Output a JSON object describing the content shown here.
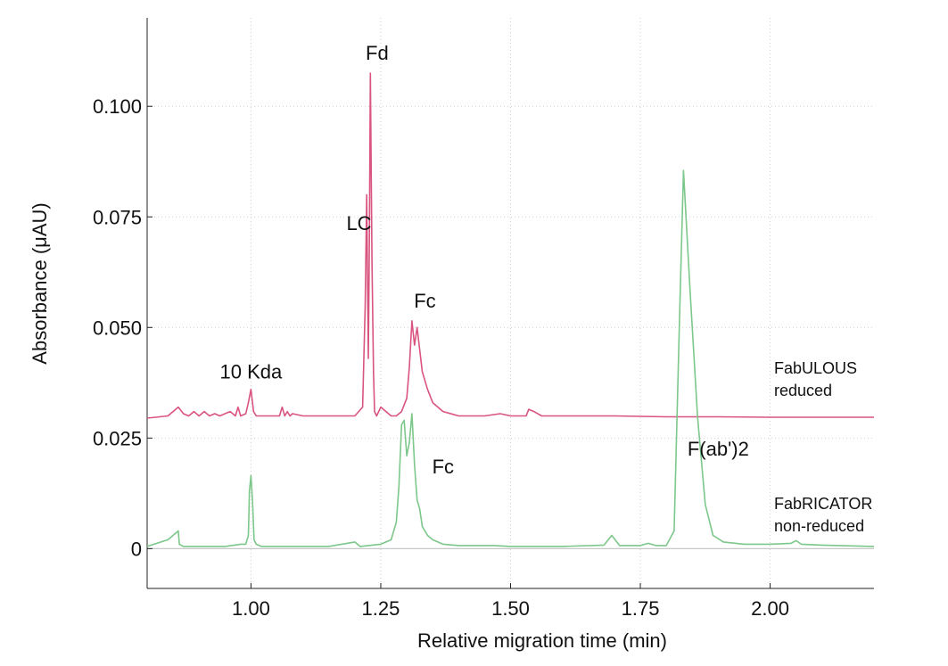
{
  "chart_data": {
    "type": "line",
    "title": "",
    "xlabel": "Relative migration time (min)",
    "ylabel": "Absorbance (μAU)",
    "xlim": [
      0.8,
      2.2
    ],
    "ylim": [
      -0.009,
      0.12
    ],
    "x_ticks": [
      1.0,
      1.25,
      1.5,
      1.75,
      2.0
    ],
    "x_tick_labels": [
      "1.00",
      "1.25",
      "1.50",
      "1.75",
      "2.00"
    ],
    "y_ticks": [
      0,
      0.025,
      0.05,
      0.075,
      0.1
    ],
    "y_tick_labels": [
      "0",
      "0.025",
      "0.050",
      "0.075",
      "0.100"
    ],
    "grid": "dotted",
    "colors": {
      "reduced": "#d9547f",
      "nonreduced": "#7cc78a",
      "baseline": "#c8c8c8"
    },
    "series": [
      {
        "name": "FabULOUS reduced",
        "label_lines": [
          "FabULOUS",
          "reduced"
        ],
        "x": [
          0.8,
          0.84,
          0.86,
          0.87,
          0.88,
          0.89,
          0.9,
          0.91,
          0.92,
          0.93,
          0.94,
          0.95,
          0.96,
          0.97,
          0.975,
          0.98,
          0.99,
          0.995,
          1.0,
          1.005,
          1.01,
          1.02,
          1.04,
          1.055,
          1.06,
          1.065,
          1.07,
          1.075,
          1.08,
          1.1,
          1.15,
          1.2,
          1.215,
          1.22,
          1.223,
          1.226,
          1.228,
          1.23,
          1.233,
          1.236,
          1.238,
          1.242,
          1.25,
          1.26,
          1.27,
          1.28,
          1.29,
          1.3,
          1.305,
          1.31,
          1.315,
          1.32,
          1.325,
          1.33,
          1.34,
          1.35,
          1.37,
          1.4,
          1.45,
          1.48,
          1.5,
          1.53,
          1.535,
          1.545,
          1.56,
          1.6,
          1.7,
          1.8,
          1.9,
          2.0,
          2.1,
          2.2
        ],
        "y": [
          0.0295,
          0.03,
          0.032,
          0.0305,
          0.03,
          0.031,
          0.03,
          0.031,
          0.03,
          0.0305,
          0.03,
          0.0305,
          0.031,
          0.03,
          0.032,
          0.03,
          0.0305,
          0.033,
          0.036,
          0.031,
          0.03,
          0.03,
          0.03,
          0.03,
          0.032,
          0.03,
          0.031,
          0.03,
          0.0305,
          0.03,
          0.03,
          0.03,
          0.032,
          0.055,
          0.08,
          0.043,
          0.07,
          0.1075,
          0.065,
          0.04,
          0.031,
          0.03,
          0.032,
          0.031,
          0.03,
          0.03,
          0.031,
          0.034,
          0.041,
          0.0515,
          0.046,
          0.05,
          0.045,
          0.04,
          0.036,
          0.033,
          0.031,
          0.03,
          0.03,
          0.0305,
          0.03,
          0.03,
          0.0315,
          0.031,
          0.03,
          0.03,
          0.03,
          0.0298,
          0.0298,
          0.0297,
          0.0297,
          0.0297
        ]
      },
      {
        "name": "FabRICATOR non-reduced",
        "label_lines": [
          "FabRICATOR",
          "non-reduced"
        ],
        "x": [
          0.8,
          0.84,
          0.86,
          0.862,
          0.87,
          0.9,
          0.95,
          0.98,
          0.99,
          0.995,
          0.997,
          1.0,
          1.003,
          1.006,
          1.01,
          1.02,
          1.05,
          1.1,
          1.15,
          1.2,
          1.205,
          1.21,
          1.25,
          1.27,
          1.28,
          1.285,
          1.29,
          1.295,
          1.3,
          1.305,
          1.31,
          1.315,
          1.32,
          1.325,
          1.33,
          1.34,
          1.35,
          1.37,
          1.4,
          1.47,
          1.5,
          1.6,
          1.68,
          1.695,
          1.71,
          1.75,
          1.765,
          1.78,
          1.8,
          1.815,
          1.825,
          1.833,
          1.845,
          1.86,
          1.875,
          1.89,
          1.91,
          1.95,
          2.0,
          2.04,
          2.05,
          2.06,
          2.1,
          2.2
        ],
        "y": [
          0.0005,
          0.002,
          0.004,
          0.001,
          0.0005,
          0.0005,
          0.0005,
          0.001,
          0.001,
          0.003,
          0.013,
          0.0165,
          0.0105,
          0.002,
          0.001,
          0.0005,
          0.0005,
          0.0005,
          0.0005,
          0.0015,
          0.001,
          0.0005,
          0.001,
          0.002,
          0.006,
          0.014,
          0.028,
          0.029,
          0.021,
          0.024,
          0.0305,
          0.019,
          0.011,
          0.009,
          0.005,
          0.003,
          0.002,
          0.001,
          0.0007,
          0.0007,
          0.0005,
          0.0005,
          0.0008,
          0.003,
          0.0007,
          0.0007,
          0.0012,
          0.0007,
          0.0007,
          0.004,
          0.05,
          0.0855,
          0.06,
          0.03,
          0.01,
          0.003,
          0.0015,
          0.001,
          0.001,
          0.0012,
          0.0018,
          0.001,
          0.0008,
          0.0005
        ]
      }
    ],
    "annotations": [
      {
        "text": "10 Kda",
        "x": 1.0,
        "y": 0.0385
      },
      {
        "text": "LC",
        "x": 1.208,
        "y": 0.072
      },
      {
        "text": "Fd",
        "x": 1.243,
        "y": 0.1105
      },
      {
        "text": "Fc",
        "x": 1.335,
        "y": 0.0545
      },
      {
        "text": "Fc",
        "x": 1.37,
        "y": 0.017
      },
      {
        "text": "F(ab')2",
        "x": 1.9,
        "y": 0.021
      }
    ]
  }
}
